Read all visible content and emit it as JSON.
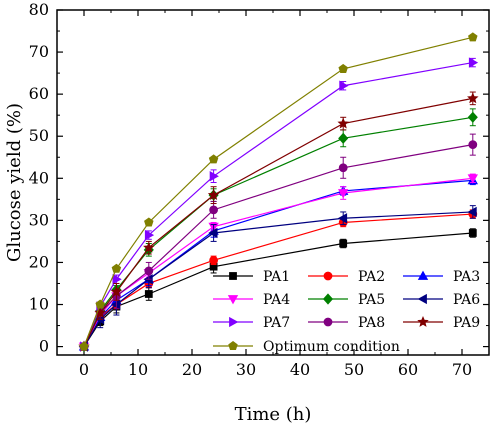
{
  "chart_data": {
    "type": "line",
    "xlabel": "Time (h)",
    "ylabel": "Glucose yield (%)",
    "xlim": [
      -5,
      75
    ],
    "ylim": [
      -2,
      80
    ],
    "xticks": [
      "0",
      "10",
      "20",
      "30",
      "40",
      "50",
      "60",
      "70"
    ],
    "yticks": [
      "0",
      "10",
      "20",
      "30",
      "40",
      "50",
      "60",
      "70",
      "80"
    ],
    "x": [
      0,
      3,
      6,
      12,
      24,
      48,
      72
    ],
    "series": [
      {
        "name": "PA1",
        "color": "#000000",
        "marker": "square",
        "values": [
          0,
          6,
          9.5,
          12.5,
          19,
          24.5,
          27
        ],
        "errors": [
          0,
          1,
          1.5,
          1.5,
          1.5,
          1,
          1
        ]
      },
      {
        "name": "PA2",
        "color": "#ff0000",
        "marker": "circle",
        "values": [
          0,
          7,
          10,
          15,
          20.5,
          29.5,
          31.5
        ],
        "errors": [
          0,
          1,
          1,
          1,
          1,
          1,
          1
        ]
      },
      {
        "name": "PA3",
        "color": "#0000ff",
        "marker": "triangle-up",
        "values": [
          0,
          7,
          11,
          16,
          27.5,
          37,
          39.5
        ],
        "errors": [
          0,
          1,
          1,
          1.5,
          1.5,
          1,
          1
        ]
      },
      {
        "name": "PA4",
        "color": "#ff00ff",
        "marker": "triangle-down",
        "values": [
          0,
          7.5,
          12,
          17.5,
          28.5,
          36.5,
          40
        ],
        "errors": [
          0,
          1,
          1,
          1,
          1,
          1.5,
          1
        ]
      },
      {
        "name": "PA5",
        "color": "#008000",
        "marker": "diamond",
        "values": [
          0,
          8.5,
          13.5,
          23,
          36,
          49.5,
          54.5
        ],
        "errors": [
          0,
          1,
          1,
          1.5,
          1.5,
          2,
          2
        ]
      },
      {
        "name": "PA6",
        "color": "#000080",
        "marker": "triangle-left",
        "values": [
          0,
          6.5,
          10,
          16,
          27,
          30.5,
          32
        ],
        "errors": [
          0,
          2,
          2.5,
          2,
          2,
          1.5,
          1.5
        ]
      },
      {
        "name": "PA7",
        "color": "#8000ff",
        "marker": "triangle-right",
        "values": [
          0,
          9.5,
          16,
          26.5,
          40.5,
          62,
          67.5
        ],
        "errors": [
          0,
          1,
          1,
          1,
          1.5,
          1,
          1
        ]
      },
      {
        "name": "PA8",
        "color": "#800080",
        "marker": "circle",
        "values": [
          0,
          8,
          12,
          18,
          32.5,
          42.5,
          48
        ],
        "errors": [
          0,
          1.5,
          3,
          2,
          2,
          2.5,
          2.5
        ]
      },
      {
        "name": "PA9",
        "color": "#800000",
        "marker": "star",
        "values": [
          0,
          8,
          13,
          23.5,
          36,
          53,
          59
        ],
        "errors": [
          0,
          1.5,
          2,
          1.5,
          2,
          1.5,
          1.5
        ]
      },
      {
        "name": "Optimum condition",
        "color": "#808000",
        "marker": "pentagon",
        "values": [
          0,
          10,
          18.5,
          29.5,
          44.5,
          66,
          73.5
        ],
        "errors": [
          0,
          0.5,
          0.5,
          0.5,
          0.5,
          0.5,
          0.5
        ]
      }
    ]
  }
}
